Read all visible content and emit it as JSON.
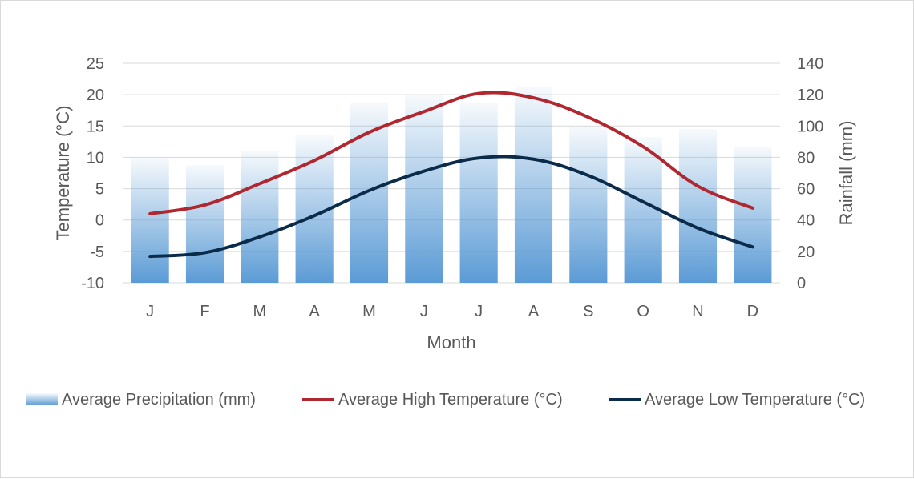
{
  "chart_data": {
    "type": "bar+line",
    "title": "",
    "xlabel": "Month",
    "ylabel_left": "Temperature (°C)",
    "ylabel_right": "Rainfall (mm)",
    "categories": [
      "J",
      "F",
      "M",
      "A",
      "M",
      "J",
      "J",
      "A",
      "S",
      "O",
      "N",
      "D"
    ],
    "y_left": {
      "min": -10,
      "max": 25,
      "step": 5,
      "ticks": [
        "-10",
        "-5",
        "0",
        "5",
        "10",
        "15",
        "20",
        "25"
      ]
    },
    "y_right": {
      "min": 0,
      "max": 140,
      "step": 20,
      "ticks": [
        "0",
        "20",
        "40",
        "60",
        "80",
        "100",
        "120",
        "140"
      ]
    },
    "grid": true,
    "legend_position": "bottom",
    "series": [
      {
        "name": "Average Precipitation (mm)",
        "kind": "bar",
        "axis": "right",
        "color": "#5b9bd5",
        "values": [
          80,
          75,
          84,
          94,
          115,
          120,
          115,
          125,
          100,
          93,
          98,
          87
        ]
      },
      {
        "name": "Average High Temperature (°C)",
        "kind": "line",
        "axis": "left",
        "color": "#b0272f",
        "values": [
          1.0,
          2.4,
          5.8,
          9.5,
          14.0,
          17.3,
          20.2,
          19.5,
          16.4,
          11.7,
          5.4,
          1.9
        ]
      },
      {
        "name": "Average Low Temperature (°C)",
        "kind": "line",
        "axis": "left",
        "color": "#0b2b4a",
        "values": [
          -5.8,
          -5.2,
          -2.7,
          0.7,
          4.7,
          7.8,
          9.9,
          9.7,
          7.1,
          2.9,
          -1.3,
          -4.3
        ]
      }
    ]
  }
}
